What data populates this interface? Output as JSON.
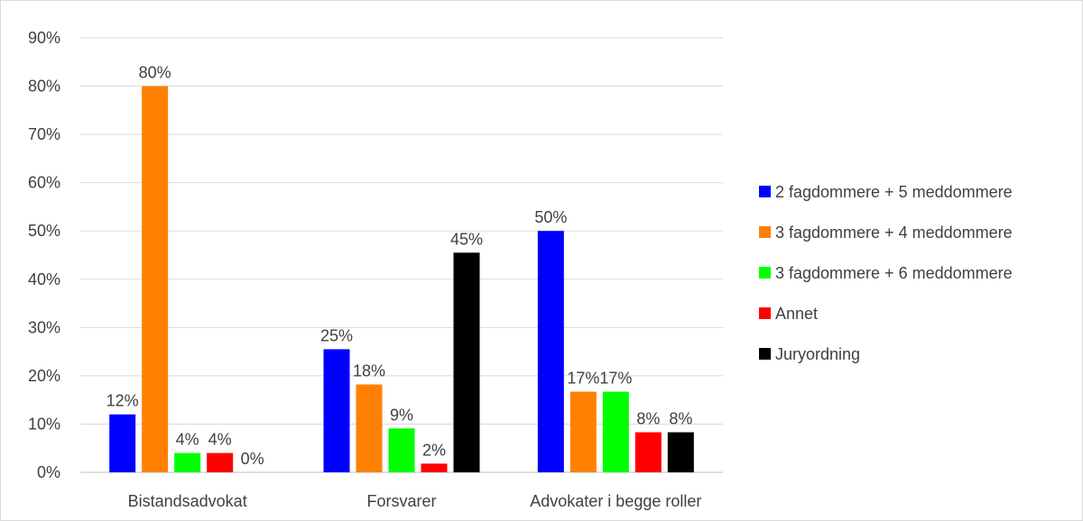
{
  "chart_data": {
    "type": "bar",
    "categories": [
      "Bistandsadvokat",
      "Forsvarer",
      "Advokater i begge roller"
    ],
    "series": [
      {
        "name": "2 fagdommere + 5 meddommere",
        "color": "#0000ff",
        "values": [
          12,
          25.5,
          50
        ],
        "labels": [
          "12%",
          "25%",
          "50%"
        ]
      },
      {
        "name": "3 fagdommere + 4 meddommere",
        "color": "#ff8000",
        "values": [
          80,
          18.2,
          16.7
        ],
        "labels": [
          "80%",
          "18%",
          "17%"
        ]
      },
      {
        "name": "3 fagdommere + 6 meddommere",
        "color": "#00ff00",
        "values": [
          4,
          9.1,
          16.7
        ],
        "labels": [
          "4%",
          "9%",
          "17%"
        ]
      },
      {
        "name": "Annet",
        "color": "#ff0000",
        "values": [
          4,
          1.8,
          8.3
        ],
        "labels": [
          "4%",
          "2%",
          "8%"
        ]
      },
      {
        "name": "Juryordning",
        "color": "#000000",
        "values": [
          0,
          45.5,
          8.3
        ],
        "labels": [
          "0%",
          "45%",
          "8%"
        ]
      }
    ],
    "yticks": [
      "0%",
      "10%",
      "20%",
      "30%",
      "40%",
      "50%",
      "60%",
      "70%",
      "80%",
      "90%"
    ],
    "ylim": [
      0,
      90
    ],
    "grid": true,
    "legend_position": "right"
  }
}
